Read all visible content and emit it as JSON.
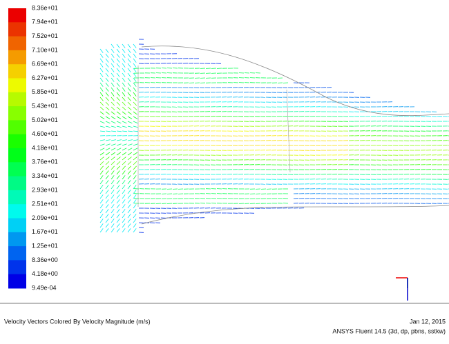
{
  "colorbar": {
    "labels": [
      "8.36e+01",
      "7.94e+01",
      "7.52e+01",
      "7.10e+01",
      "6.69e+01",
      "6.27e+01",
      "5.85e+01",
      "5.43e+01",
      "5.02e+01",
      "4.60e+01",
      "4.18e+01",
      "3.76e+01",
      "3.34e+01",
      "2.93e+01",
      "2.51e+01",
      "2.09e+01",
      "1.67e+01",
      "1.25e+01",
      "8.36e+00",
      "4.18e+00",
      "9.49e-04"
    ]
  },
  "footer": {
    "caption": "Velocity Vectors Colored By Velocity Magnitude (m/s)",
    "date": "Jan 12, 2015",
    "software": "ANSYS Fluent 14.5 (3d, dp, pbns, sstkw)"
  }
}
